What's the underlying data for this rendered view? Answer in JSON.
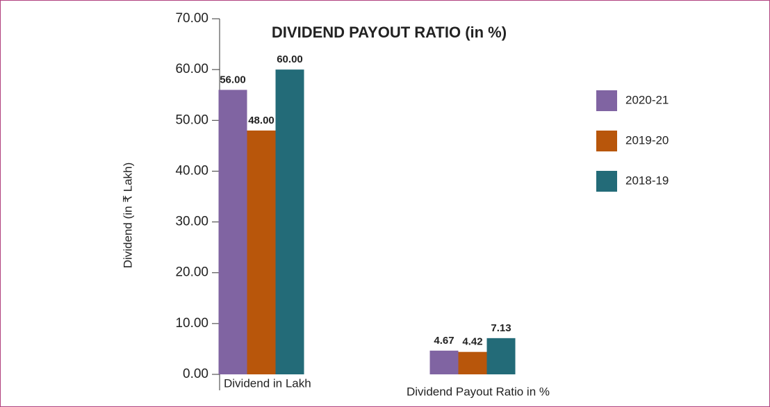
{
  "chart_data": {
    "type": "bar",
    "title": "DIVIDEND PAYOUT RATIO (in %)",
    "y_label": "Dividend (in ₹ Lakh)",
    "categories": [
      "Dividend in Lakh",
      "Dividend Payout Ratio in %"
    ],
    "series": [
      {
        "name": "2020-21",
        "color": "#8064a2",
        "values": [
          56,
          4.67
        ],
        "value_labels": [
          "56.00",
          "4.67"
        ]
      },
      {
        "name": "2019-20",
        "color": "#b8560b",
        "values": [
          48,
          4.42
        ],
        "value_labels": [
          "48.00",
          "4.42"
        ]
      },
      {
        "name": "2018-19",
        "color": "#236b78",
        "values": [
          60,
          7.13
        ],
        "value_labels": [
          "60.00",
          "7.13"
        ]
      }
    ],
    "ylim": [
      0,
      70
    ],
    "yticks": [
      {
        "value": 0,
        "label": "0.00"
      },
      {
        "value": 10,
        "label": "10.00"
      },
      {
        "value": 20,
        "label": "20.00"
      },
      {
        "value": 30,
        "label": "30.00"
      },
      {
        "value": 40,
        "label": "40.00"
      },
      {
        "value": 50,
        "label": "50.00"
      },
      {
        "value": 60,
        "label": "60.00"
      },
      {
        "value": 70,
        "label": "70.00"
      }
    ],
    "legend": "right"
  }
}
